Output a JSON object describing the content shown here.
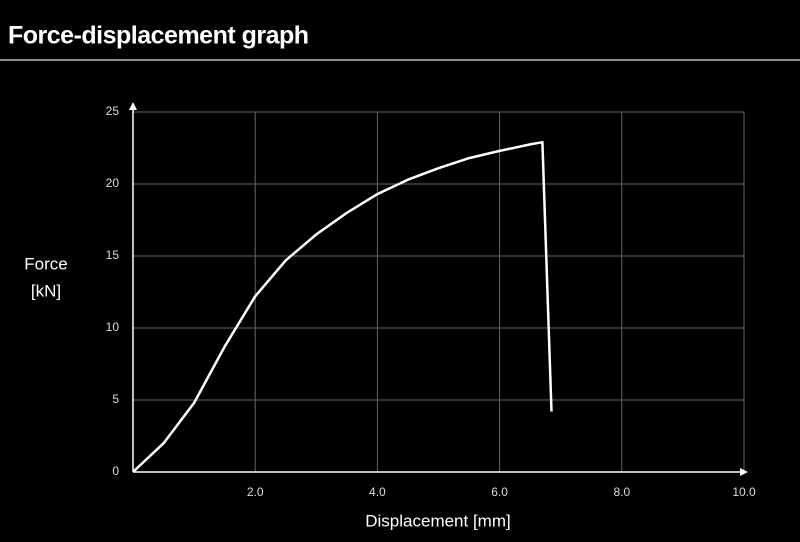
{
  "chart_data": {
    "type": "line",
    "title": "Force-displacement graph",
    "x_label": "Displacement [mm]",
    "y_label": [
      "Force",
      "[kN]"
    ],
    "x": [
      0,
      0.5,
      1.0,
      1.5,
      2.0,
      2.5,
      3.0,
      3.5,
      4.0,
      4.5,
      5.0,
      5.5,
      6.0,
      6.5,
      6.7,
      6.85
    ],
    "series": [
      {
        "name": "Force",
        "color": "#ffffff",
        "values": [
          0,
          2.0,
          4.8,
          8.7,
          12.2,
          14.7,
          16.5,
          18.0,
          19.3,
          20.3,
          21.1,
          21.8,
          22.3,
          22.75,
          22.9,
          4.2
        ]
      }
    ],
    "xlim": [
      0,
      10
    ],
    "xticks": [
      {
        "value": 2,
        "label": "2.0"
      },
      {
        "value": 4,
        "label": "4.0"
      },
      {
        "value": 6,
        "label": "6.0"
      },
      {
        "value": 8,
        "label": "8.0"
      },
      {
        "value": 10,
        "label": "10.0"
      }
    ],
    "ylim": [
      0,
      25
    ],
    "yticks": [
      0,
      5,
      10,
      15,
      20,
      25
    ],
    "grid": true
  }
}
